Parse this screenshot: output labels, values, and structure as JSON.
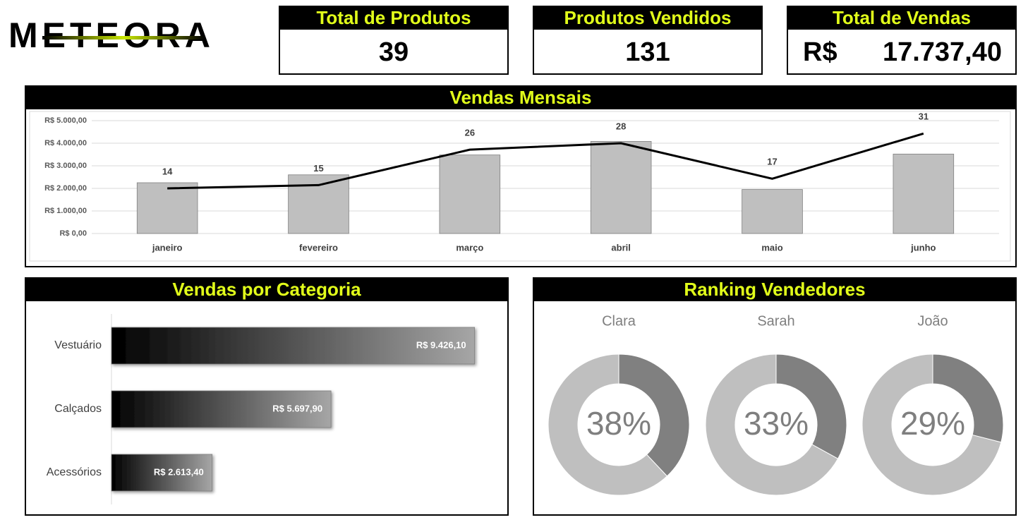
{
  "header": {
    "logo": "METEORA"
  },
  "kpis": [
    {
      "title": "Total de Produtos",
      "value": "39"
    },
    {
      "title": "Produtos Vendidos",
      "value": "131"
    },
    {
      "title": "Total de Vendas",
      "currency": "R$",
      "value": "17.737,40"
    }
  ],
  "chart_data": [
    {
      "type": "combo",
      "title": "Vendas Mensais",
      "categories": [
        "janeiro",
        "fevereiro",
        "março",
        "abril",
        "maio",
        "junho"
      ],
      "series": [
        {
          "type": "bar",
          "color": "#bfbfbf",
          "values": [
            2250,
            2600,
            3480,
            4080,
            1950,
            3520
          ]
        },
        {
          "type": "line",
          "color": "#000000",
          "axis": "y2",
          "data_labels": true,
          "values": [
            14,
            15,
            26,
            28,
            17,
            31
          ]
        }
      ],
      "ylim": [
        0,
        5000
      ],
      "yticks": [
        {
          "value": 0,
          "label": "R$ 0,00"
        },
        {
          "value": 1000,
          "label": "R$ 1.000,00"
        },
        {
          "value": 2000,
          "label": "R$ 2.000,00"
        },
        {
          "value": 3000,
          "label": "R$ 3.000,00"
        },
        {
          "value": 4000,
          "label": "R$ 4.000,00"
        },
        {
          "value": 5000,
          "label": "R$ 5.000,00"
        }
      ],
      "y2lim": [
        0,
        35
      ],
      "grid": true
    },
    {
      "type": "hbar",
      "title": "Vendas por Categoria",
      "categories": [
        "Vestuário",
        "Calçados",
        "Acessórios"
      ],
      "values": [
        9426.1,
        5697.9,
        2613.4
      ],
      "value_labels": [
        "R$ 9.426,10",
        "R$ 5.697,90",
        "R$ 2.613,40"
      ],
      "xlim": [
        0,
        10000
      ],
      "color": "#000000"
    },
    {
      "type": "donut",
      "title": "Ranking Vendedores",
      "categories": [
        "Clara",
        "Sarah",
        "João"
      ],
      "values": [
        38,
        33,
        29
      ],
      "value_labels": [
        "38%",
        "33%",
        "29%"
      ],
      "color": "#808080",
      "track_color": "#bfbfbf"
    }
  ]
}
